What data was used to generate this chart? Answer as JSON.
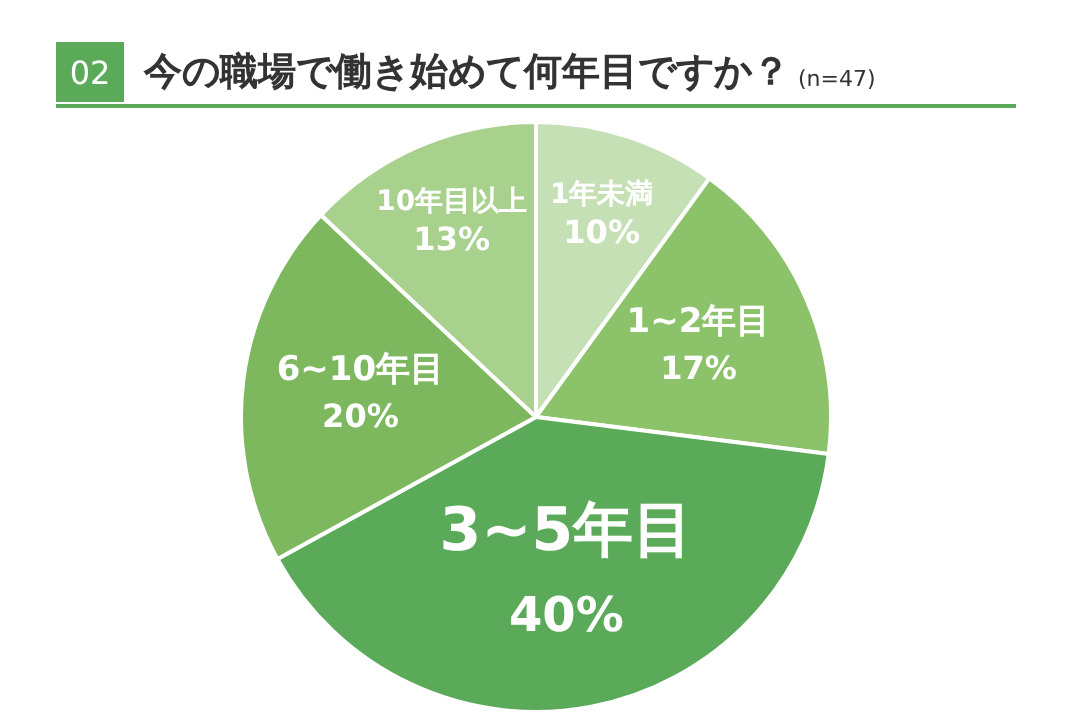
{
  "chart_data": {
    "type": "pie",
    "title": "今の職場で働き始めて何年目ですか？",
    "subtitle": "(n=47)",
    "annotations": [
      "02"
    ],
    "categories": [
      "1年未満",
      "1~2年目",
      "3~5年目",
      "6~10年目",
      "10年目以上"
    ],
    "values": [
      10,
      17,
      40,
      20,
      13
    ],
    "colors": [
      "#c5e0b4",
      "#8cc26a",
      "#5aaa5a",
      "#7db85f",
      "#a9d18e"
    ],
    "value_labels": [
      "10%",
      "17%",
      "40%",
      "20%",
      "13%"
    ],
    "legend": false
  }
}
